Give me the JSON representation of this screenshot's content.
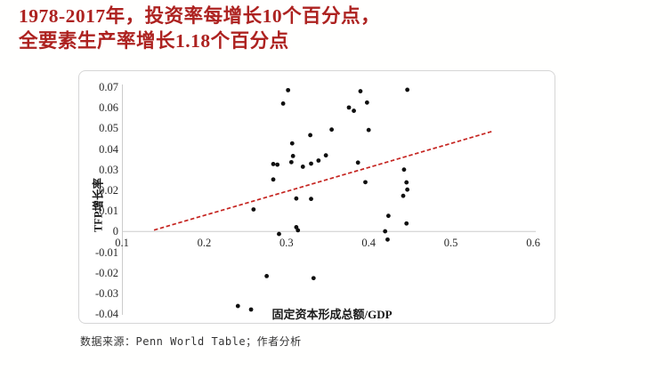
{
  "title": {
    "line1": "1978-2017年，投资率每增长10个百分点，",
    "line2": "全要素生产率增长1.18个百分点",
    "color": "#ad2220"
  },
  "source_note": "数据来源：Penn World Table；作者分析",
  "chart_data": {
    "type": "scatter",
    "title": "",
    "xlabel": "固定资本形成总额/GDP",
    "ylabel": "TFP增长率",
    "xlim": [
      0.1,
      0.6
    ],
    "ylim": [
      -0.04,
      0.07
    ],
    "grid": false,
    "x_ticks": {
      "values": [
        0.1,
        0.2,
        0.3,
        0.4,
        0.5,
        0.6
      ],
      "labels": [
        "0.1",
        "0.2",
        "0.3",
        "0.4",
        "0.5",
        "0.6"
      ]
    },
    "y_ticks": {
      "values": [
        0.07,
        0.06,
        0.05,
        0.04,
        0.03,
        0.02,
        0.01,
        0,
        -0.01,
        -0.02,
        -0.03,
        -0.04
      ],
      "labels": [
        "0.07",
        "0.06",
        "0.05",
        "0.04",
        "0.03",
        "0.02",
        "0.01",
        "0",
        "-0.01",
        "-0.02",
        "-0.03",
        "-0.04"
      ]
    },
    "point_color": "#0f0f0f",
    "axis_color": "#cccccc",
    "points": [
      [
        0.302,
        0.0685
      ],
      [
        0.296,
        0.062
      ],
      [
        0.39,
        0.068
      ],
      [
        0.447,
        0.0687
      ],
      [
        0.398,
        0.0625
      ],
      [
        0.376,
        0.0601
      ],
      [
        0.382,
        0.0585
      ],
      [
        0.355,
        0.0494
      ],
      [
        0.4,
        0.0492
      ],
      [
        0.329,
        0.0467
      ],
      [
        0.307,
        0.0427
      ],
      [
        0.308,
        0.0366
      ],
      [
        0.306,
        0.0336
      ],
      [
        0.284,
        0.0327
      ],
      [
        0.289,
        0.0324
      ],
      [
        0.32,
        0.0314
      ],
      [
        0.33,
        0.0329
      ],
      [
        0.339,
        0.0344
      ],
      [
        0.348,
        0.0369
      ],
      [
        0.387,
        0.0334
      ],
      [
        0.443,
        0.03
      ],
      [
        0.284,
        0.0252
      ],
      [
        0.396,
        0.0239
      ],
      [
        0.446,
        0.0238
      ],
      [
        0.447,
        0.0203
      ],
      [
        0.442,
        0.0173
      ],
      [
        0.312,
        0.016
      ],
      [
        0.33,
        0.0158
      ],
      [
        0.26,
        0.0107
      ],
      [
        0.424,
        0.0076
      ],
      [
        0.312,
        0.0021
      ],
      [
        0.314,
        0.0006
      ],
      [
        0.446,
        0.0039
      ],
      [
        0.42,
        0.0001
      ],
      [
        0.423,
        -0.0039
      ],
      [
        0.291,
        -0.0012
      ],
      [
        0.276,
        -0.0216
      ],
      [
        0.333,
        -0.0226
      ],
      [
        0.241,
        -0.0361
      ],
      [
        0.257,
        -0.0378
      ]
    ],
    "trendline": {
      "style": "dashed",
      "color": "#c52420",
      "x1": 0.139,
      "y1": 0.0007,
      "x2": 0.55,
      "y2": 0.0485,
      "slope": 0.118
    }
  }
}
